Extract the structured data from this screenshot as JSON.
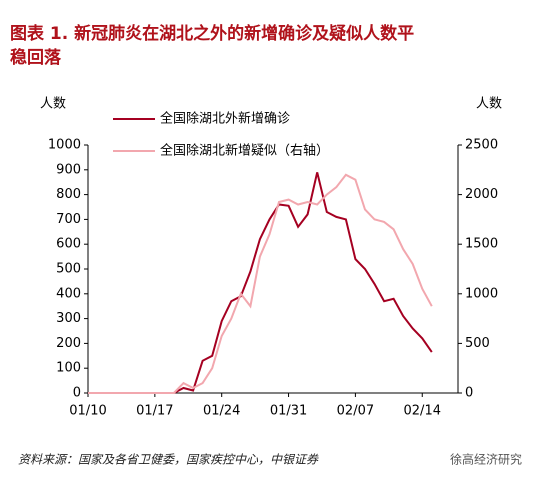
{
  "chart_data": {
    "type": "line",
    "title": [
      "图表 1. 新冠肺炎在湖北之外的新增确诊及疑似人数平",
      "稳回落"
    ],
    "ylabel": "人数",
    "y2label": "人数",
    "categories": [
      "01/10",
      null,
      null,
      null,
      null,
      null,
      null,
      "01/17",
      null,
      null,
      null,
      null,
      null,
      null,
      "01/24",
      null,
      null,
      null,
      null,
      null,
      null,
      "01/31",
      null,
      null,
      null,
      null,
      null,
      null,
      "02/07",
      null,
      null,
      null,
      null,
      null,
      null,
      "02/14",
      null
    ],
    "series": [
      {
        "name": "全国除湖北外新增确诊",
        "color": "#a50021",
        "axis": "y",
        "values": [
          0,
          0,
          0,
          0,
          0,
          0,
          0,
          0,
          0,
          0,
          20,
          10,
          130,
          150,
          290,
          370,
          390,
          490,
          620,
          700,
          760,
          755,
          670,
          720,
          890,
          730,
          710,
          700,
          540,
          500,
          440,
          370,
          380,
          310,
          260,
          220,
          165
        ]
      },
      {
        "name": "全国除湖北新增疑似（右轴）",
        "color": "#f2a7ae",
        "axis": "y2",
        "values": [
          0,
          0,
          0,
          0,
          0,
          0,
          0,
          0,
          0,
          0,
          100,
          50,
          100,
          250,
          575,
          750,
          1000,
          875,
          1375,
          1600,
          1925,
          1950,
          1900,
          1925,
          1900,
          2000,
          2075,
          2200,
          2150,
          1850,
          1750,
          1725,
          1650,
          1450,
          1300,
          1050,
          875
        ]
      }
    ],
    "ylim": [
      0,
      1000
    ],
    "yticks": [
      0,
      100,
      200,
      300,
      400,
      500,
      600,
      700,
      800,
      900,
      1000
    ],
    "y2lim": [
      0,
      2500
    ],
    "y2ticks": [
      0,
      500,
      1000,
      1500,
      2000,
      2500
    ],
    "legend": "top",
    "source": "资料来源：国家及各省卫健委，国家疾控中心，中银证券",
    "watermark": "徐高经济研究"
  }
}
